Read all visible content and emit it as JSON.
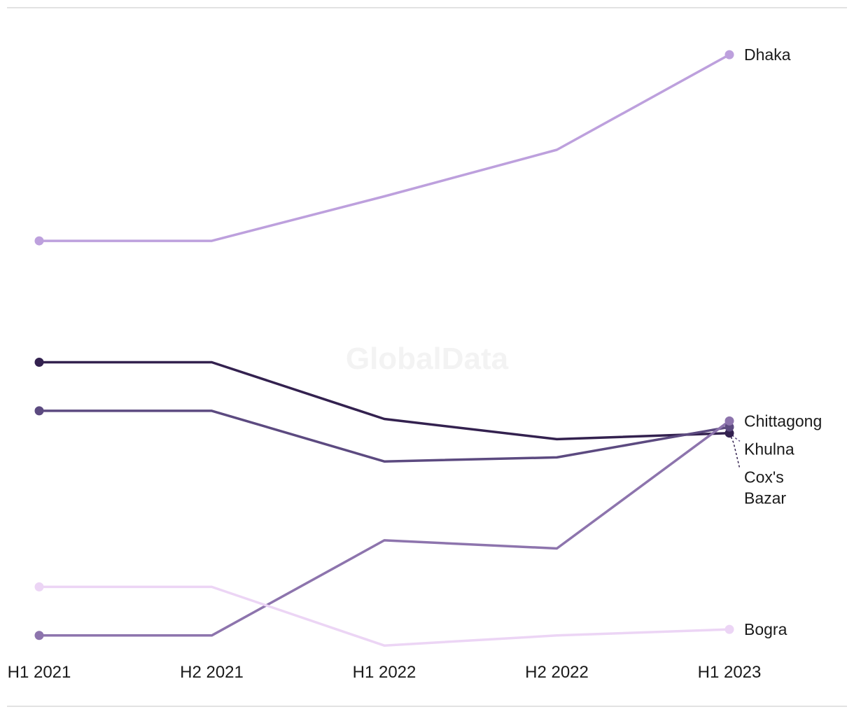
{
  "watermark": "GlobalData",
  "chart_data": {
    "type": "line",
    "title": "",
    "xlabel": "",
    "ylabel": "",
    "x": [
      "H1 2021",
      "H2 2021",
      "H1 2022",
      "H2 2022",
      "H1 2023"
    ],
    "ylim": [
      -0.7,
      29.5
    ],
    "grid": false,
    "legend": "direct labels at line ends",
    "series": [
      {
        "name": "Dhaka",
        "color": "#bda0dd",
        "values": [
          19.5,
          19.5,
          21.7,
          24.0,
          28.7
        ],
        "label_lines": [
          "Dhaka"
        ]
      },
      {
        "name": "Cox's Bazar",
        "color": "#33214f",
        "values": [
          13.5,
          13.5,
          10.7,
          9.7,
          10.0
        ],
        "label_lines": [
          "Cox's",
          "Bazar"
        ]
      },
      {
        "name": "Khulna",
        "color": "#5c4a80",
        "values": [
          11.1,
          11.1,
          8.6,
          8.8,
          10.3
        ],
        "label_lines": [
          "Khulna"
        ]
      },
      {
        "name": "Chittagong",
        "color": "#8d74ad",
        "values": [
          0.0,
          0.0,
          4.7,
          4.3,
          10.6
        ],
        "label_lines": [
          "Chittagong"
        ]
      },
      {
        "name": "Bogra",
        "color": "#ecd5f5",
        "values": [
          2.4,
          2.4,
          -0.5,
          0.0,
          0.3
        ],
        "label_lines": [
          "Bogra"
        ]
      }
    ]
  }
}
